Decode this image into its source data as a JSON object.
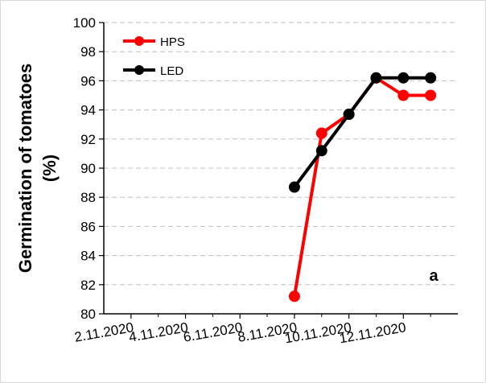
{
  "chart_data": {
    "type": "line",
    "ylabel_lines": [
      "Germination of tomatoes",
      "(%)"
    ],
    "xlabel": "",
    "x_ticks": [
      "2.11.2020",
      "4.11.2020",
      "6.11.2020",
      "8.11.2020",
      "10.11.2020",
      "12.11.2020"
    ],
    "x_domain": [
      "2020-11-01",
      "2020-11-14"
    ],
    "ylim": [
      80,
      100
    ],
    "y_ticks": [
      80,
      82,
      84,
      86,
      88,
      90,
      92,
      94,
      96,
      98,
      100
    ],
    "grid": "horizontal dashed",
    "legend_position": "top-left",
    "panel_label": "a",
    "series": [
      {
        "name": "HPS",
        "color": "#ff0000",
        "x": [
          "2020-11-08",
          "2020-11-09",
          "2020-11-10",
          "2020-11-11",
          "2020-11-12",
          "2020-11-13"
        ],
        "values": [
          81.2,
          92.4,
          93.7,
          96.2,
          95.0,
          95.0
        ]
      },
      {
        "name": "LED",
        "color": "#000000",
        "x": [
          "2020-11-08",
          "2020-11-09",
          "2020-11-10",
          "2020-11-11",
          "2020-11-12",
          "2020-11-13"
        ],
        "values": [
          88.7,
          91.2,
          93.7,
          96.2,
          96.2,
          96.2
        ]
      }
    ]
  }
}
